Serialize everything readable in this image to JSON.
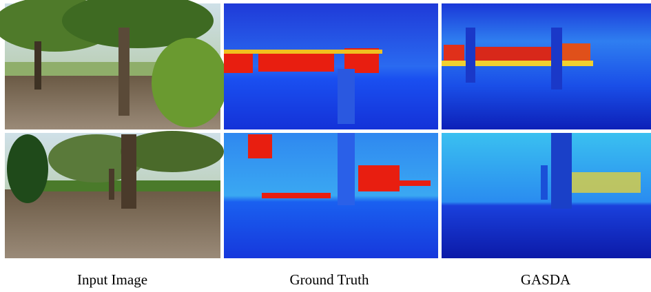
{
  "figure": {
    "columns": [
      {
        "caption": "Input Image"
      },
      {
        "caption": "Ground Truth"
      },
      {
        "caption": "GASDA"
      }
    ]
  }
}
